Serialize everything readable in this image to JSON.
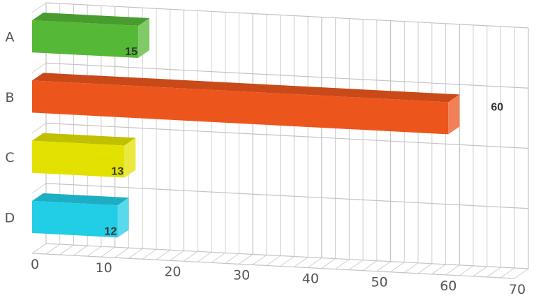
{
  "chart_data": {
    "type": "bar",
    "orientation": "horizontal",
    "style": "3d",
    "categories": [
      "A",
      "B",
      "C",
      "D"
    ],
    "values": [
      15,
      60,
      13,
      12
    ],
    "colors": [
      "#55b836",
      "#ec561d",
      "#e2e100",
      "#22cde6"
    ],
    "data_labels": [
      "15",
      "60",
      "13",
      "12"
    ],
    "x_ticks": [
      "0",
      "10",
      "20",
      "30",
      "40",
      "50",
      "60",
      "70"
    ],
    "xlim": [
      0,
      70
    ],
    "grid": true,
    "legend": false,
    "title": "",
    "xlabel": "",
    "ylabel": ""
  }
}
